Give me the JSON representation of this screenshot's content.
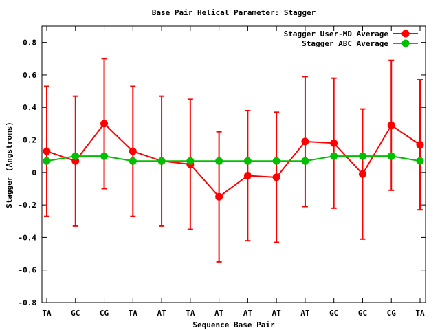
{
  "chart_data": {
    "type": "line",
    "title": "Base Pair Helical Parameter: Stagger",
    "xlabel": "Sequence Base Pair",
    "ylabel": "Stagger (Angstroms)",
    "ylim": [
      -0.8,
      0.9
    ],
    "yticks": [
      -0.8,
      -0.6,
      -0.4,
      -0.2,
      0,
      0.2,
      0.4,
      0.6,
      0.8
    ],
    "ytick_labels": [
      "-0.8",
      "-0.6",
      "-0.4",
      "-0.2",
      "0",
      "0.2",
      "0.4",
      "0.6",
      "0.8"
    ],
    "categories": [
      "TA",
      "GC",
      "CG",
      "TA",
      "AT",
      "TA",
      "AT",
      "AT",
      "AT",
      "AT",
      "GC",
      "GC",
      "CG",
      "TA"
    ],
    "grid": false,
    "legend_position": "top-right",
    "series": [
      {
        "name": "Stagger User-MD Average",
        "color": "#ff0000",
        "values": [
          0.13,
          0.07,
          0.3,
          0.13,
          0.07,
          0.05,
          -0.15,
          -0.02,
          -0.03,
          0.19,
          0.18,
          -0.01,
          0.29,
          0.17
        ],
        "error": [
          0.4,
          0.4,
          0.4,
          0.4,
          0.4,
          0.4,
          0.4,
          0.4,
          0.4,
          0.4,
          0.4,
          0.4,
          0.4,
          0.4
        ]
      },
      {
        "name": "Stagger ABC Average",
        "color": "#00c000",
        "values": [
          0.07,
          0.1,
          0.1,
          0.07,
          0.07,
          0.07,
          0.07,
          0.07,
          0.07,
          0.07,
          0.1,
          0.1,
          0.1,
          0.07
        ]
      }
    ]
  }
}
